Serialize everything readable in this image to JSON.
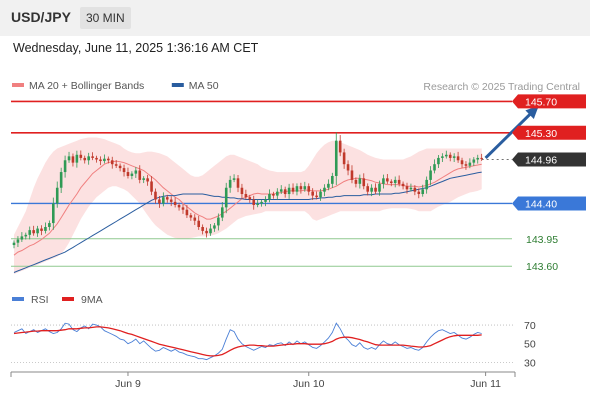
{
  "header": {
    "symbol": "USD/JPY",
    "timeframe": "30 MIN",
    "datetime": "Wednesday, June 11, 2025 1:36:16 AM CET"
  },
  "colors": {
    "bull": "#2f9a55",
    "bear": "#c0392b",
    "ma20": "#f08080",
    "bollinger_fill": "#fcdede",
    "ma50": "#2a5d9f",
    "resistance": "#e02020",
    "support": "#3a78d8",
    "minor_support": "#8fc98f",
    "current": "#333333",
    "rsi": "#4a7fd6",
    "rsi_ma": "#e02020"
  },
  "chart_data": [
    {
      "type": "candlestick",
      "title": "",
      "legend": {
        "position": "top-left",
        "items": [
          {
            "label": "MA 20 + Bollinger Bands",
            "color": "#f08080"
          },
          {
            "label": "MA 50",
            "color": "#2a5d9f"
          }
        ]
      },
      "watermark": "Research © 2025 Trading Central",
      "ylim": [
        143.45,
        145.82
      ],
      "x_ticks": [
        {
          "label": "Jun 9",
          "index": 29
        },
        {
          "label": "Jun 10",
          "index": 75
        },
        {
          "label": "Jun 11",
          "index": 120
        }
      ],
      "levels": [
        {
          "value": 145.7,
          "label": "145.70",
          "kind": "resistance"
        },
        {
          "value": 145.3,
          "label": "145.30",
          "kind": "resistance"
        },
        {
          "value": 144.96,
          "label": "144.96",
          "kind": "current"
        },
        {
          "value": 144.4,
          "label": "144.40",
          "kind": "support"
        },
        {
          "value": 143.95,
          "label": "143.95",
          "kind": "minor_support"
        },
        {
          "value": 143.6,
          "label": "143.60",
          "kind": "minor_support"
        }
      ],
      "arrow": {
        "from_index": 120,
        "from_value": 144.98,
        "to_index": 133,
        "to_value": 145.62
      },
      "close": [
        143.9,
        143.94,
        143.98,
        144.0,
        144.06,
        144.02,
        144.08,
        144.05,
        144.1,
        144.15,
        144.4,
        144.6,
        144.8,
        144.95,
        145.0,
        144.92,
        145.02,
        144.98,
        144.95,
        145.0,
        144.98,
        144.96,
        144.94,
        144.97,
        144.95,
        144.9,
        144.88,
        144.85,
        144.8,
        144.75,
        144.78,
        144.82,
        144.7,
        144.72,
        144.68,
        144.55,
        144.45,
        144.4,
        144.48,
        144.45,
        144.42,
        144.38,
        144.35,
        144.32,
        144.25,
        144.22,
        144.18,
        144.1,
        144.05,
        144.02,
        144.08,
        144.12,
        144.22,
        144.35,
        144.6,
        144.7,
        144.72,
        144.6,
        144.52,
        144.48,
        144.45,
        144.38,
        144.4,
        144.42,
        144.45,
        144.52,
        144.5,
        144.55,
        144.58,
        144.52,
        144.6,
        144.55,
        144.62,
        144.58,
        144.62,
        144.55,
        144.5,
        144.48,
        144.55,
        144.6,
        144.65,
        144.75,
        145.2,
        145.05,
        144.9,
        144.82,
        144.7,
        144.65,
        144.72,
        144.62,
        144.55,
        144.6,
        144.55,
        144.65,
        144.72,
        144.68,
        144.66,
        144.7,
        144.65,
        144.62,
        144.58,
        144.6,
        144.55,
        144.52,
        144.58,
        144.7,
        144.82,
        144.9,
        144.98,
        145.0,
        145.02,
        144.98,
        145.0,
        144.95,
        144.9,
        144.88,
        144.92,
        144.96,
        144.98,
        144.97
      ],
      "ma20": [
        143.74,
        143.78,
        143.8,
        143.83,
        143.86,
        143.88,
        143.91,
        143.94,
        143.98,
        144.02,
        144.08,
        144.14,
        144.22,
        144.3,
        144.38,
        144.45,
        144.52,
        144.6,
        144.66,
        144.72,
        144.78,
        144.82,
        144.86,
        144.9,
        144.92,
        144.93,
        144.94,
        144.93,
        144.92,
        144.9,
        144.88,
        144.86,
        144.84,
        144.82,
        144.78,
        144.74,
        144.7,
        144.65,
        144.6,
        144.56,
        144.52,
        144.48,
        144.45,
        144.4,
        144.36,
        144.32,
        144.28,
        144.25,
        144.23,
        144.2,
        144.2,
        144.22,
        144.24,
        144.27,
        144.3,
        144.34,
        144.38,
        144.42,
        144.46,
        144.48,
        144.5,
        144.52,
        144.53,
        144.52,
        144.52,
        144.52,
        144.52,
        144.53,
        144.54,
        144.55,
        144.56,
        144.56,
        144.56,
        144.56,
        144.57,
        144.57,
        144.56,
        144.56,
        144.56,
        144.57,
        144.58,
        144.6,
        144.62,
        144.65,
        144.68,
        144.7,
        144.71,
        144.72,
        144.72,
        144.71,
        144.7,
        144.69,
        144.67,
        144.66,
        144.65,
        144.64,
        144.64,
        144.64,
        144.64,
        144.63,
        144.62,
        144.62,
        144.62,
        144.61,
        144.62,
        144.63,
        144.65,
        144.67,
        144.7,
        144.73,
        144.76,
        144.79,
        144.82,
        144.84,
        144.85,
        144.86,
        144.87,
        144.88,
        144.89,
        144.9
      ],
      "bb_upper": [
        144.0,
        144.1,
        144.2,
        144.3,
        144.45,
        144.6,
        144.72,
        144.82,
        144.92,
        145.0,
        145.06,
        145.1,
        145.12,
        145.14,
        145.16,
        145.18,
        145.2,
        145.22,
        145.23,
        145.24,
        145.24,
        145.24,
        145.23,
        145.22,
        145.2,
        145.18,
        145.16,
        145.14,
        145.1,
        145.07,
        145.05,
        145.04,
        145.04,
        145.05,
        145.06,
        145.06,
        145.05,
        145.04,
        145.02,
        145.0,
        144.96,
        144.92,
        144.88,
        144.84,
        144.8,
        144.76,
        144.74,
        144.74,
        144.76,
        144.8,
        144.84,
        144.88,
        144.92,
        144.96,
        145.0,
        145.02,
        145.02,
        145.0,
        144.98,
        144.96,
        144.94,
        144.92,
        144.9,
        144.86,
        144.84,
        144.82,
        144.81,
        144.8,
        144.8,
        144.8,
        144.8,
        144.8,
        144.8,
        144.8,
        144.82,
        144.88,
        144.96,
        145.04,
        145.1,
        145.15,
        145.18,
        145.2,
        145.2,
        145.18,
        145.16,
        145.14,
        145.12,
        145.1,
        145.08,
        145.05,
        145.02,
        145.0,
        144.98,
        144.97,
        144.96,
        144.96,
        144.96,
        144.96,
        144.96,
        144.96,
        144.98,
        145.0,
        145.03,
        145.06,
        145.08,
        145.1,
        145.1,
        145.1,
        145.1,
        145.1,
        145.1,
        145.1,
        145.1,
        145.1,
        145.1,
        145.1,
        145.1,
        145.1,
        145.1,
        145.1
      ],
      "bb_lower": [
        143.5,
        143.52,
        143.54,
        143.56,
        143.58,
        143.6,
        143.62,
        143.64,
        143.66,
        143.68,
        143.7,
        143.72,
        143.76,
        143.82,
        143.9,
        144.0,
        144.1,
        144.2,
        144.28,
        144.36,
        144.42,
        144.48,
        144.52,
        144.56,
        144.6,
        144.62,
        144.62,
        144.6,
        144.58,
        144.55,
        144.5,
        144.45,
        144.4,
        144.32,
        144.25,
        144.18,
        144.12,
        144.08,
        144.04,
        144.0,
        143.98,
        143.96,
        143.95,
        143.95,
        143.95,
        143.96,
        143.97,
        143.98,
        143.98,
        143.98,
        143.99,
        144.0,
        144.02,
        144.05,
        144.08,
        144.12,
        144.16,
        144.2,
        144.22,
        144.24,
        144.25,
        144.26,
        144.27,
        144.28,
        144.3,
        144.3,
        144.3,
        144.3,
        144.3,
        144.3,
        144.3,
        144.3,
        144.3,
        144.3,
        144.3,
        144.26,
        144.2,
        144.18,
        144.2,
        144.22,
        144.24,
        144.26,
        144.28,
        144.3,
        144.3,
        144.3,
        144.3,
        144.3,
        144.3,
        144.3,
        144.3,
        144.3,
        144.3,
        144.3,
        144.32,
        144.33,
        144.34,
        144.34,
        144.34,
        144.34,
        144.34,
        144.33,
        144.32,
        144.3,
        144.3,
        144.3,
        144.3,
        144.33,
        144.36,
        144.38,
        144.4,
        144.42,
        144.45,
        144.48,
        144.5,
        144.52,
        144.54,
        144.55,
        144.56,
        144.58
      ],
      "ma50": [
        143.52,
        143.54,
        143.56,
        143.58,
        143.6,
        143.62,
        143.64,
        143.66,
        143.68,
        143.7,
        143.72,
        143.74,
        143.76,
        143.78,
        143.81,
        143.84,
        143.87,
        143.9,
        143.93,
        143.96,
        143.99,
        144.02,
        144.05,
        144.08,
        144.11,
        144.14,
        144.17,
        144.2,
        144.23,
        144.26,
        144.29,
        144.32,
        144.35,
        144.38,
        144.41,
        144.44,
        144.46,
        144.48,
        144.49,
        144.5,
        144.5,
        144.5,
        144.51,
        144.52,
        144.52,
        144.52,
        144.52,
        144.52,
        144.52,
        144.51,
        144.5,
        144.49,
        144.49,
        144.48,
        144.48,
        144.47,
        144.47,
        144.46,
        144.46,
        144.45,
        144.45,
        144.45,
        144.45,
        144.45,
        144.45,
        144.45,
        144.45,
        144.45,
        144.45,
        144.45,
        144.45,
        144.45,
        144.45,
        144.45,
        144.45,
        144.45,
        144.46,
        144.46,
        144.47,
        144.47,
        144.48,
        144.48,
        144.49,
        144.49,
        144.5,
        144.5,
        144.5,
        144.5,
        144.5,
        144.51,
        144.51,
        144.51,
        144.52,
        144.52,
        144.52,
        144.52,
        144.52,
        144.53,
        144.53,
        144.54,
        144.55,
        144.56,
        144.57,
        144.58,
        144.59,
        144.6,
        144.62,
        144.64,
        144.66,
        144.68,
        144.7,
        144.72,
        144.73,
        144.74,
        144.75,
        144.76,
        144.77,
        144.78,
        144.79,
        144.8
      ]
    },
    {
      "type": "line",
      "title": "",
      "legend": {
        "position": "top-left",
        "items": [
          {
            "label": "RSI",
            "color": "#4a7fd6"
          },
          {
            "label": "9MA",
            "color": "#e02020"
          }
        ]
      },
      "ylim": [
        24,
        84
      ],
      "y_ticks": [
        70,
        50,
        30
      ],
      "guide_lines": [
        70,
        30
      ],
      "series": [
        {
          "name": "RSI",
          "values": [
            62,
            64,
            66,
            61,
            63,
            65,
            62,
            64,
            66,
            63,
            61,
            62,
            66,
            72,
            71,
            65,
            63,
            67,
            69,
            66,
            71,
            70,
            68,
            64,
            62,
            60,
            58,
            55,
            54,
            50,
            52,
            55,
            50,
            53,
            49,
            45,
            42,
            43,
            46,
            44,
            42,
            44,
            41,
            40,
            38,
            37,
            36,
            34,
            34,
            33,
            35,
            37,
            40,
            44,
            55,
            65,
            63,
            55,
            50,
            47,
            45,
            43,
            45,
            47,
            46,
            49,
            48,
            50,
            51,
            48,
            52,
            49,
            53,
            50,
            52,
            49,
            46,
            45,
            48,
            52,
            56,
            62,
            72,
            66,
            58,
            54,
            49,
            47,
            51,
            46,
            44,
            46,
            44,
            49,
            53,
            50,
            49,
            52,
            49,
            47,
            45,
            46,
            44,
            43,
            46,
            52,
            57,
            61,
            64,
            65,
            63,
            61,
            62,
            59,
            56,
            55,
            57,
            60,
            62,
            61
          ]
        },
        {
          "name": "9MA",
          "values": [
            61,
            61.5,
            62,
            62.5,
            63,
            63.5,
            63.5,
            64,
            64,
            64,
            64,
            64,
            64.5,
            65,
            66,
            66,
            66,
            66.5,
            67,
            67,
            67.5,
            68,
            68,
            67.5,
            67,
            66,
            65,
            64,
            62.5,
            61,
            60,
            58.5,
            57,
            55.5,
            54,
            52.5,
            51,
            49.5,
            48.5,
            47.5,
            46.5,
            45.5,
            44.5,
            43.5,
            42.5,
            41.5,
            40.5,
            39.5,
            38.5,
            37.5,
            37,
            37,
            37.5,
            38.5,
            40.5,
            43,
            45,
            46.5,
            47.5,
            48,
            48.5,
            48.5,
            48,
            48,
            47.5,
            47.5,
            47.5,
            48,
            48.5,
            49,
            49.5,
            49.5,
            50,
            50,
            50,
            49.5,
            49.5,
            49.5,
            49.5,
            50,
            51,
            52.5,
            55,
            56.5,
            57,
            57,
            56.5,
            55.5,
            54.5,
            53,
            52,
            50.5,
            49,
            48.5,
            48.5,
            48.5,
            48.5,
            48.5,
            48.5,
            48.5,
            48,
            47.5,
            47,
            46.5,
            46.5,
            47,
            48,
            50,
            52,
            54,
            56,
            57.5,
            58.5,
            59,
            59,
            59,
            59,
            59,
            59,
            59.5
          ]
        }
      ]
    }
  ],
  "x_axis": {
    "ticks": [
      "Jun 9",
      "Jun 10",
      "Jun 11"
    ]
  }
}
